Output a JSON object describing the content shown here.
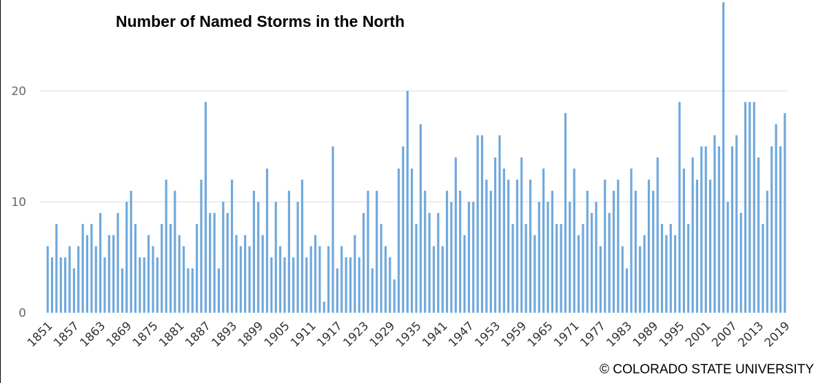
{
  "chart_data": {
    "type": "bar",
    "title": "Number of Named Storms in the North",
    "xlabel": "",
    "ylabel": "",
    "ylim": [
      0,
      28
    ],
    "yticks": [
      0,
      10,
      20
    ],
    "grid": true,
    "bar_color": "#6fa8dc",
    "first_year": 1851,
    "x_tick_labels": [
      "1851",
      "1857",
      "1863",
      "1869",
      "1875",
      "1881",
      "1887",
      "1893",
      "1899",
      "1905",
      "1911",
      "1917",
      "1923",
      "1929",
      "1935",
      "1941",
      "1947",
      "1953",
      "1959",
      "1965",
      "1971",
      "1977",
      "1983",
      "1989",
      "1995",
      "2001",
      "2007",
      "2013",
      "2019"
    ],
    "values": [
      6,
      5,
      8,
      5,
      5,
      6,
      4,
      6,
      8,
      7,
      8,
      6,
      9,
      5,
      7,
      7,
      9,
      4,
      10,
      11,
      8,
      5,
      5,
      7,
      6,
      5,
      8,
      12,
      8,
      11,
      7,
      6,
      4,
      4,
      8,
      12,
      19,
      9,
      9,
      4,
      10,
      9,
      12,
      7,
      6,
      7,
      6,
      11,
      10,
      7,
      13,
      5,
      10,
      6,
      5,
      11,
      5,
      10,
      12,
      5,
      6,
      7,
      6,
      1,
      6,
      15,
      4,
      6,
      5,
      5,
      7,
      5,
      9,
      11,
      4,
      11,
      8,
      6,
      5,
      3,
      13,
      15,
      20,
      13,
      8,
      17,
      11,
      9,
      6,
      9,
      6,
      11,
      10,
      14,
      11,
      7,
      10,
      10,
      16,
      16,
      12,
      11,
      14,
      16,
      13,
      12,
      8,
      12,
      14,
      8,
      12,
      7,
      10,
      13,
      10,
      11,
      8,
      8,
      18,
      10,
      13,
      7,
      8,
      11,
      9,
      10,
      6,
      12,
      9,
      11,
      12,
      6,
      4,
      13,
      11,
      6,
      7,
      12,
      11,
      14,
      8,
      7,
      8,
      7,
      19,
      13,
      8,
      14,
      12,
      15,
      15,
      12,
      16,
      15,
      28,
      10,
      15,
      16,
      9,
      19,
      19,
      19,
      14,
      8,
      11,
      15,
      17,
      15,
      18
    ]
  },
  "credit": "© COLORADO STATE UNIVERSITY"
}
